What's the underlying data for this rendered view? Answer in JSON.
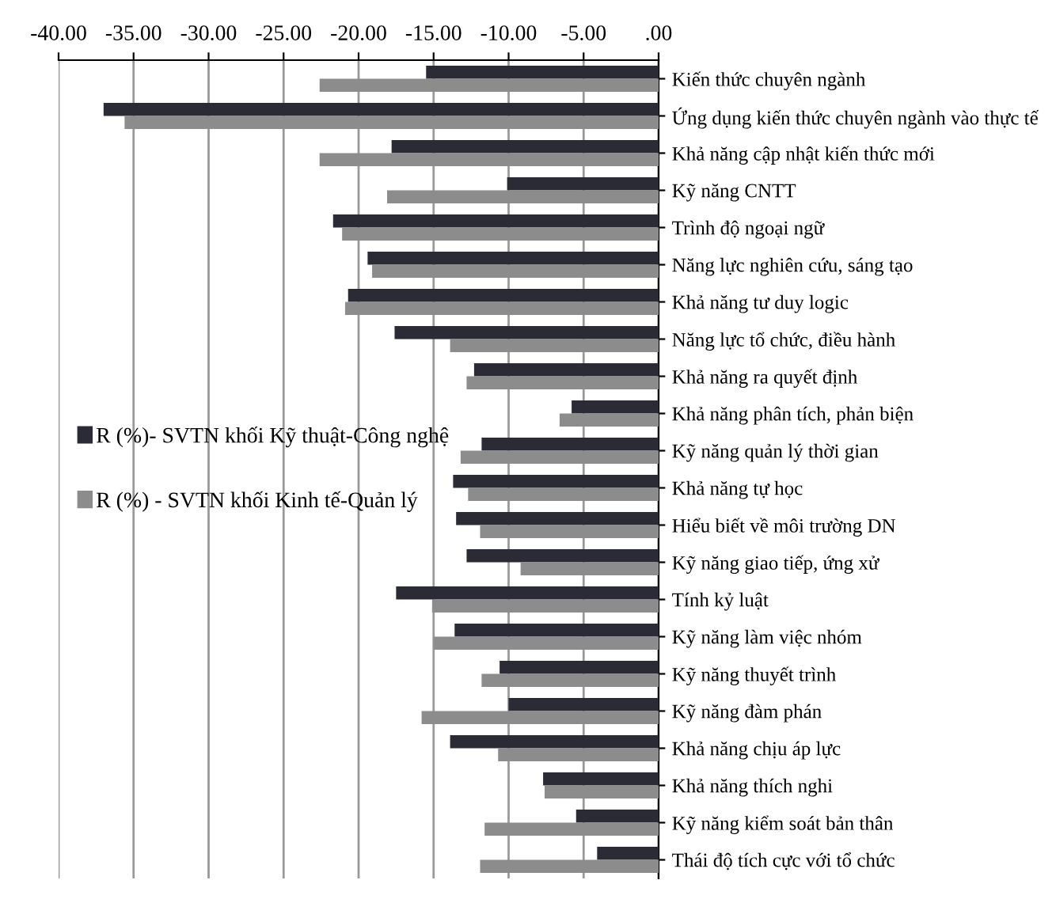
{
  "chart_data": {
    "type": "bar",
    "orientation": "horizontal",
    "categories": [
      "Kiến thức chuyên ngành",
      "Ứng dụng kiến thức chuyên ngành vào thực tế",
      "Khả năng cập nhật kiến thức mới",
      "Kỹ năng CNTT",
      "Trình độ ngoại ngữ",
      "Năng lực nghiên cứu, sáng tạo",
      "Khả năng tư duy logic",
      "Năng lực tổ chức, điều hành",
      "Khả năng ra quyết định",
      "Khả năng phân tích, phản biện",
      "Kỹ năng quản lý thời gian",
      "Khả năng tự học",
      "Hiểu biết về môi trường DN",
      "Kỹ năng giao tiếp, ứng xử",
      "Tính kỷ luật",
      "Kỹ năng làm việc nhóm",
      "Kỹ năng thuyết trình",
      "Kỹ năng đàm phán",
      "Khả năng chịu áp lực",
      "Khả năng thích nghi",
      "Kỹ năng kiểm soát bản thân",
      "Thái độ tích cực với tổ chức"
    ],
    "series": [
      {
        "name": "R (%)- SVTN khối Kỹ thuật-Công nghệ",
        "color": "#2b2b35",
        "values": [
          -15.5,
          -37.0,
          -17.8,
          -10.1,
          -21.7,
          -19.4,
          -20.7,
          -17.6,
          -12.3,
          -5.8,
          -11.8,
          -13.7,
          -13.5,
          -12.8,
          -17.5,
          -13.6,
          -10.6,
          -10.0,
          -13.9,
          -7.7,
          -5.5,
          -4.1
        ]
      },
      {
        "name": "R (%) - SVTN khối Kinh tế-Quản lý",
        "color": "#8c8c8c",
        "values": [
          -22.6,
          -35.6,
          -22.6,
          -18.1,
          -21.1,
          -19.1,
          -20.9,
          -13.9,
          -12.8,
          -6.6,
          -13.2,
          -12.7,
          -11.9,
          -9.2,
          -15.1,
          -15.0,
          -11.8,
          -15.8,
          -10.7,
          -7.6,
          -11.6,
          -11.9
        ]
      }
    ],
    "xlim": [
      -40,
      0
    ],
    "xticks": [
      {
        "value": -40,
        "label": "-40.00"
      },
      {
        "value": -35,
        "label": "-35.00"
      },
      {
        "value": -30,
        "label": "-30.00"
      },
      {
        "value": -25,
        "label": "-25.00"
      },
      {
        "value": -20,
        "label": "-20.00"
      },
      {
        "value": -15,
        "label": "-15.00"
      },
      {
        "value": -10,
        "label": "-10.00"
      },
      {
        "value": -5,
        "label": "-5.00"
      },
      {
        "value": 0,
        "label": ".00"
      }
    ],
    "grid": "x",
    "legend": "left"
  }
}
